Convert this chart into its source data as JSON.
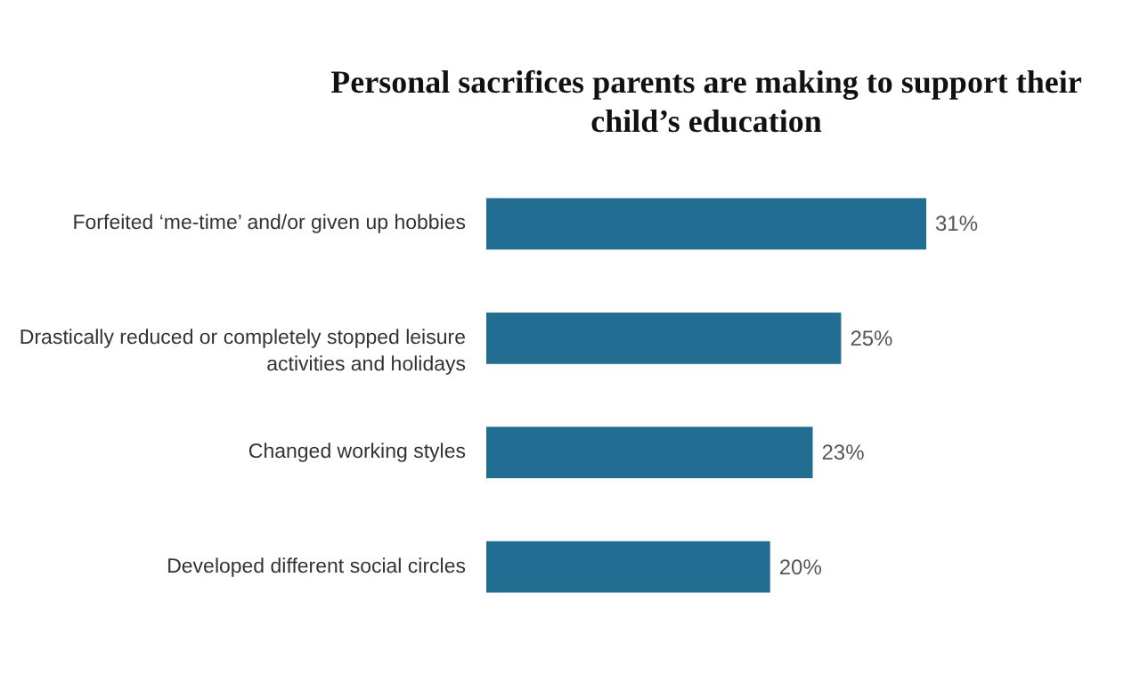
{
  "chart_data": {
    "type": "bar",
    "orientation": "horizontal",
    "title": "Personal sacrifices parents are making to support their child’s education",
    "categories": [
      "Forfeited ‘me-time’ and/or given up hobbies",
      "Drastically reduced or completely stopped leisure activities and holidays",
      "Changed working styles",
      "Developed different social circles"
    ],
    "values": [
      31,
      25,
      23,
      20
    ],
    "color": "#226e93",
    "value_labels": [
      "31%",
      "25%",
      "23%",
      "20%"
    ]
  }
}
